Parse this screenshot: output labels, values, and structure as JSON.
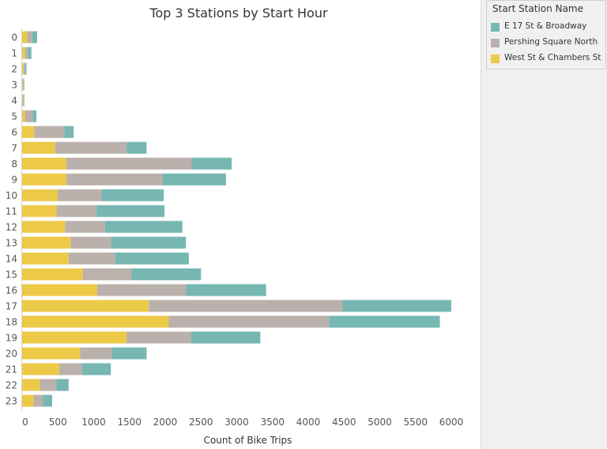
{
  "chart_data": {
    "type": "bar",
    "orientation": "horizontal",
    "stacked": true,
    "title": "Top 3 Stations by Start Hour",
    "xlabel": "Count of Bike Trips",
    "ylabel": "",
    "xlim": [
      0,
      6000
    ],
    "xticks": [
      0,
      500,
      1000,
      1500,
      2000,
      2500,
      3000,
      3500,
      4000,
      4500,
      5000,
      5500,
      6000
    ],
    "grid": false,
    "legend_position": "right",
    "categories": [
      "0",
      "1",
      "2",
      "3",
      "4",
      "5",
      "6",
      "7",
      "8",
      "9",
      "10",
      "11",
      "12",
      "13",
      "14",
      "15",
      "16",
      "17",
      "18",
      "19",
      "20",
      "21",
      "22",
      "23"
    ],
    "series": [
      {
        "name": "West St & Chambers St",
        "color": "#EDC948",
        "values": [
          70,
          40,
          20,
          10,
          10,
          40,
          170,
          460,
          620,
          620,
          500,
          480,
          600,
          680,
          650,
          850,
          1050,
          1770,
          2050,
          1460,
          810,
          520,
          250,
          160
        ]
      },
      {
        "name": "Pershing Square North",
        "color": "#BAB0AC",
        "values": [
          70,
          40,
          20,
          10,
          10,
          110,
          420,
          1000,
          1750,
          1340,
          610,
          560,
          560,
          560,
          650,
          680,
          1240,
          2710,
          2240,
          900,
          440,
          320,
          230,
          130
        ]
      },
      {
        "name": "E 17 St & Broadway",
        "color": "#76B7B2",
        "values": [
          70,
          50,
          20,
          10,
          10,
          50,
          130,
          280,
          560,
          890,
          870,
          950,
          1080,
          1050,
          1030,
          970,
          1120,
          1520,
          1550,
          970,
          490,
          400,
          170,
          130
        ]
      }
    ]
  },
  "legend": {
    "title": "Start Station Name",
    "items": [
      {
        "label": "E 17 St & Broadway",
        "color": "#76B7B2"
      },
      {
        "label": "Pershing Square North",
        "color": "#BAB0AC"
      },
      {
        "label": "West St & Chambers St",
        "color": "#EDC948"
      }
    ]
  }
}
